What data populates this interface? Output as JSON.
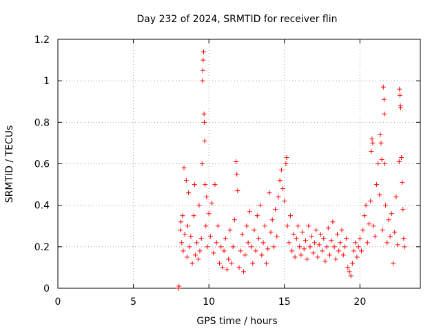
{
  "chart_data": {
    "type": "scatter",
    "title": "Day 232 of 2024, SRMTID for receiver flin",
    "xlabel": "GPS time / hours",
    "ylabel": "SRMTID / TECUs",
    "xlim": [
      0,
      24
    ],
    "ylim": [
      0,
      1.2
    ],
    "xticks": [
      0,
      5,
      10,
      15,
      20
    ],
    "xtick_labels": [
      "0",
      "5",
      "10",
      "15",
      "20"
    ],
    "yticks": [
      0,
      0.2,
      0.4,
      0.6,
      0.8,
      1.0,
      1.2
    ],
    "ytick_labels": [
      "0",
      "0.2",
      "0.4",
      "0.6",
      "0.8",
      "1",
      "1.2"
    ],
    "grid": true,
    "marker": "+",
    "marker_color": "#ff0000",
    "series": [
      {
        "name": "SRMTID",
        "approximate": true,
        "points": [
          [
            8.0,
            0.0
          ],
          [
            8.02,
            0.01
          ],
          [
            8.1,
            0.28
          ],
          [
            8.15,
            0.32
          ],
          [
            8.2,
            0.22
          ],
          [
            8.25,
            0.35
          ],
          [
            8.3,
            0.18
          ],
          [
            8.35,
            0.58
          ],
          [
            8.4,
            0.26
          ],
          [
            8.5,
            0.52
          ],
          [
            8.55,
            0.15
          ],
          [
            8.6,
            0.3
          ],
          [
            8.65,
            0.46
          ],
          [
            8.7,
            0.2
          ],
          [
            8.8,
            0.25
          ],
          [
            8.9,
            0.12
          ],
          [
            9.0,
            0.35
          ],
          [
            9.05,
            0.5
          ],
          [
            9.1,
            0.16
          ],
          [
            9.2,
            0.22
          ],
          [
            9.3,
            0.14
          ],
          [
            9.35,
            0.4
          ],
          [
            9.4,
            0.18
          ],
          [
            9.5,
            0.24
          ],
          [
            9.55,
            0.6
          ],
          [
            9.58,
            1.0
          ],
          [
            9.6,
            1.05
          ],
          [
            9.62,
            1.1
          ],
          [
            9.65,
            1.14
          ],
          [
            9.68,
            0.84
          ],
          [
            9.7,
            0.8
          ],
          [
            9.72,
            0.71
          ],
          [
            9.75,
            0.5
          ],
          [
            9.8,
            0.3
          ],
          [
            9.85,
            0.44
          ],
          [
            9.9,
            0.2
          ],
          [
            10.0,
            0.36
          ],
          [
            10.1,
            0.25
          ],
          [
            10.2,
            0.41
          ],
          [
            10.3,
            0.17
          ],
          [
            10.4,
            0.5
          ],
          [
            10.5,
            0.22
          ],
          [
            10.6,
            0.3
          ],
          [
            10.7,
            0.12
          ],
          [
            10.8,
            0.2
          ],
          [
            10.9,
            0.1
          ],
          [
            11.0,
            0.18
          ],
          [
            11.1,
            0.24
          ],
          [
            11.2,
            0.09
          ],
          [
            11.3,
            0.14
          ],
          [
            11.4,
            0.28
          ],
          [
            11.5,
            0.12
          ],
          [
            11.6,
            0.2
          ],
          [
            11.7,
            0.33
          ],
          [
            11.8,
            0.61
          ],
          [
            11.85,
            0.55
          ],
          [
            11.9,
            0.47
          ],
          [
            12.0,
            0.1
          ],
          [
            12.1,
            0.18
          ],
          [
            12.2,
            0.26
          ],
          [
            12.3,
            0.08
          ],
          [
            12.4,
            0.16
          ],
          [
            12.5,
            0.3
          ],
          [
            12.6,
            0.22
          ],
          [
            12.7,
            0.37
          ],
          [
            12.8,
            0.2
          ],
          [
            12.9,
            0.12
          ],
          [
            13.0,
            0.28
          ],
          [
            13.1,
            0.18
          ],
          [
            13.2,
            0.35
          ],
          [
            13.3,
            0.24
          ],
          [
            13.4,
            0.4
          ],
          [
            13.5,
            0.16
          ],
          [
            13.6,
            0.22
          ],
          [
            13.7,
            0.3
          ],
          [
            13.8,
            0.12
          ],
          [
            13.9,
            0.19
          ],
          [
            14.0,
            0.46
          ],
          [
            14.1,
            0.27
          ],
          [
            14.2,
            0.33
          ],
          [
            14.3,
            0.2
          ],
          [
            14.4,
            0.38
          ],
          [
            14.5,
            0.25
          ],
          [
            14.6,
            0.44
          ],
          [
            14.7,
            0.52
          ],
          [
            14.8,
            0.57
          ],
          [
            14.9,
            0.48
          ],
          [
            15.0,
            0.42
          ],
          [
            15.1,
            0.6
          ],
          [
            15.15,
            0.63
          ],
          [
            15.2,
            0.3
          ],
          [
            15.3,
            0.22
          ],
          [
            15.4,
            0.35
          ],
          [
            15.5,
            0.18
          ],
          [
            15.6,
            0.26
          ],
          [
            15.7,
            0.15
          ],
          [
            15.8,
            0.24
          ],
          [
            15.9,
            0.3
          ],
          [
            16.0,
            0.2
          ],
          [
            16.1,
            0.16
          ],
          [
            16.2,
            0.27
          ],
          [
            16.3,
            0.19
          ],
          [
            16.4,
            0.23
          ],
          [
            16.5,
            0.14
          ],
          [
            16.6,
            0.3
          ],
          [
            16.7,
            0.2
          ],
          [
            16.8,
            0.25
          ],
          [
            16.9,
            0.17
          ],
          [
            17.0,
            0.22
          ],
          [
            17.1,
            0.28
          ],
          [
            17.2,
            0.15
          ],
          [
            17.3,
            0.21
          ],
          [
            17.4,
            0.26
          ],
          [
            17.5,
            0.18
          ],
          [
            17.6,
            0.24
          ],
          [
            17.7,
            0.13
          ],
          [
            17.8,
            0.2
          ],
          [
            17.9,
            0.29
          ],
          [
            18.0,
            0.16
          ],
          [
            18.1,
            0.23
          ],
          [
            18.2,
            0.32
          ],
          [
            18.3,
            0.2
          ],
          [
            18.4,
            0.14
          ],
          [
            18.5,
            0.26
          ],
          [
            18.6,
            0.18
          ],
          [
            18.7,
            0.22
          ],
          [
            18.8,
            0.28
          ],
          [
            18.9,
            0.16
          ],
          [
            19.0,
            0.2
          ],
          [
            19.1,
            0.24
          ],
          [
            19.2,
            0.1
          ],
          [
            19.3,
            0.08
          ],
          [
            19.4,
            0.06
          ],
          [
            19.5,
            0.12
          ],
          [
            19.6,
            0.18
          ],
          [
            19.7,
            0.22
          ],
          [
            19.8,
            0.15
          ],
          [
            19.9,
            0.2
          ],
          [
            20.0,
            0.24
          ],
          [
            20.1,
            0.18
          ],
          [
            20.2,
            0.28
          ],
          [
            20.3,
            0.35
          ],
          [
            20.4,
            0.4
          ],
          [
            20.5,
            0.22
          ],
          [
            20.6,
            0.31
          ],
          [
            20.7,
            0.42
          ],
          [
            20.75,
            0.66
          ],
          [
            20.8,
            0.72
          ],
          [
            20.85,
            0.7
          ],
          [
            20.9,
            0.3
          ],
          [
            21.0,
            0.25
          ],
          [
            21.1,
            0.5
          ],
          [
            21.2,
            0.6
          ],
          [
            21.3,
            0.45
          ],
          [
            21.35,
            0.74
          ],
          [
            21.4,
            0.7
          ],
          [
            21.45,
            0.62
          ],
          [
            21.5,
            0.28
          ],
          [
            21.55,
            0.97
          ],
          [
            21.6,
            0.91
          ],
          [
            21.62,
            0.84
          ],
          [
            21.65,
            0.6
          ],
          [
            21.7,
            0.4
          ],
          [
            21.8,
            0.22
          ],
          [
            21.9,
            0.33
          ],
          [
            22.0,
            0.25
          ],
          [
            22.1,
            0.36
          ],
          [
            22.2,
            0.12
          ],
          [
            22.3,
            0.27
          ],
          [
            22.4,
            0.44
          ],
          [
            22.5,
            0.21
          ],
          [
            22.6,
            0.61
          ],
          [
            22.62,
            0.96
          ],
          [
            22.65,
            0.93
          ],
          [
            22.68,
            0.88
          ],
          [
            22.7,
            0.87
          ],
          [
            22.75,
            0.63
          ],
          [
            22.8,
            0.51
          ],
          [
            22.85,
            0.38
          ],
          [
            22.9,
            0.24
          ],
          [
            22.95,
            0.2
          ]
        ]
      }
    ]
  }
}
